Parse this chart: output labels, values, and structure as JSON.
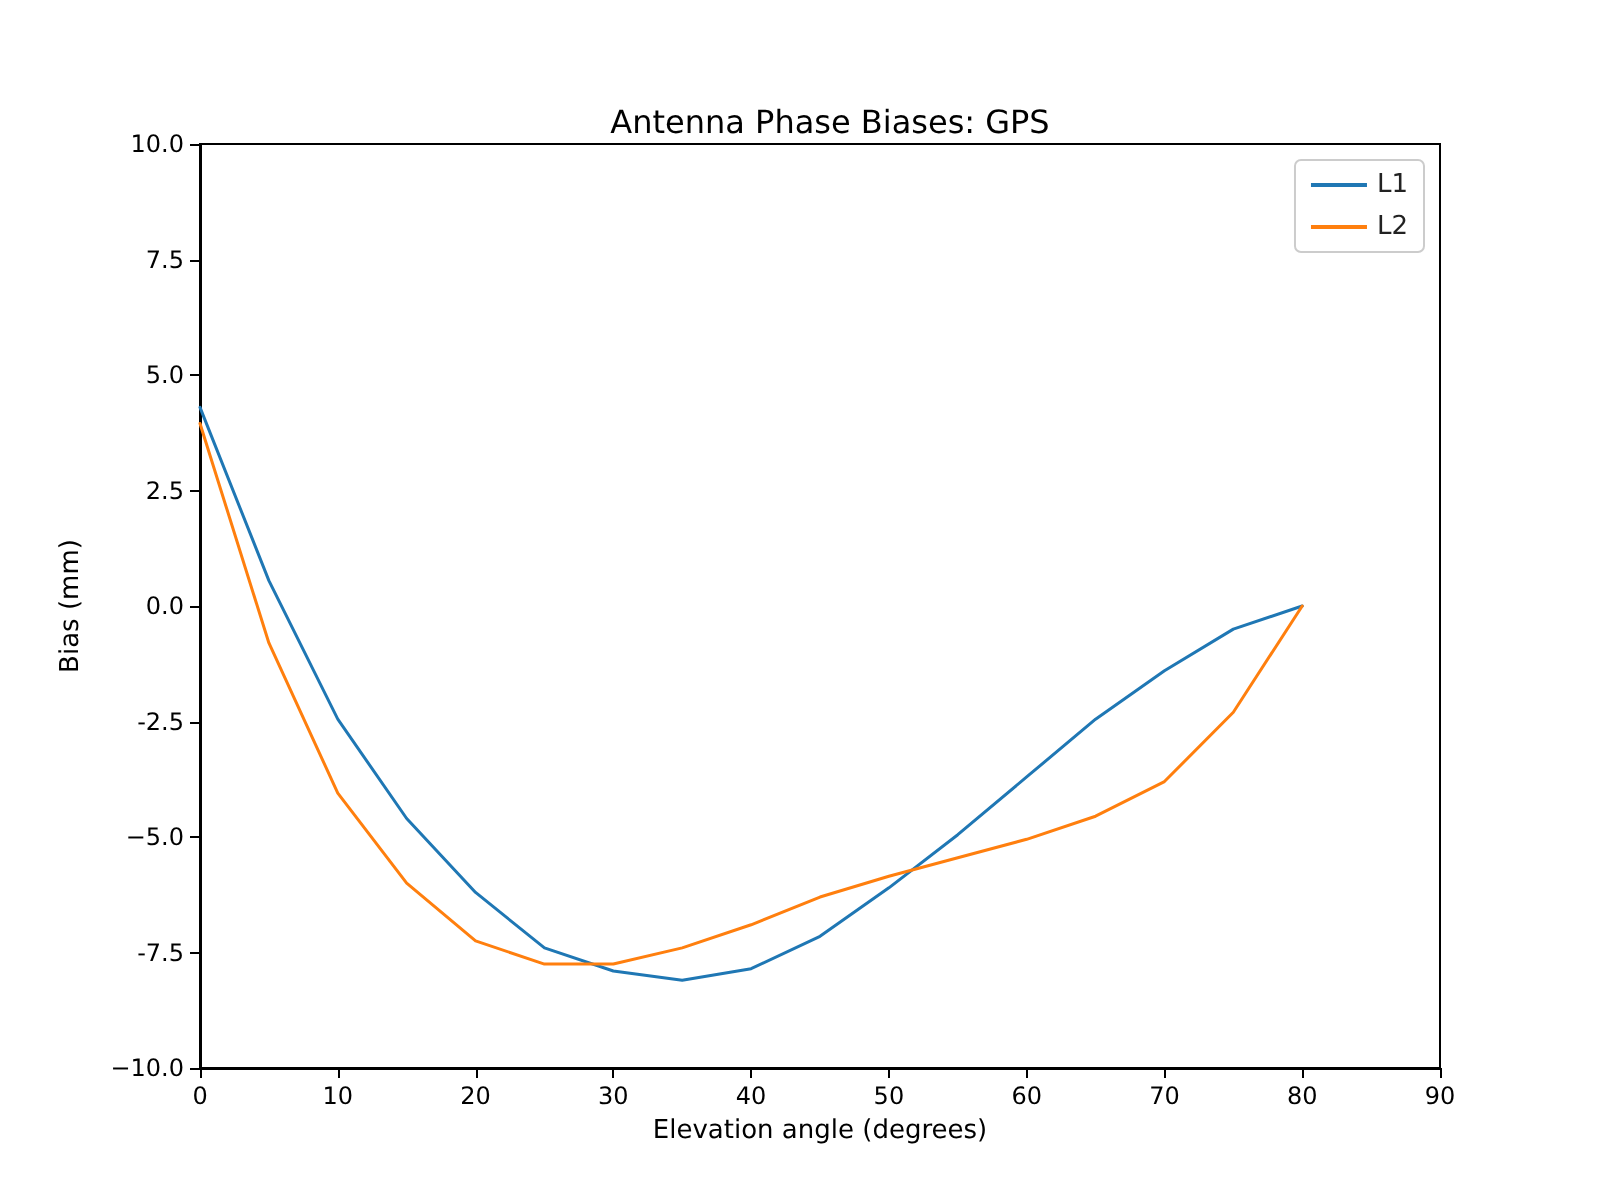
{
  "chart_data": {
    "type": "line",
    "title": "Antenna Phase Biases: GPS",
    "xlabel": "Elevation angle (degrees)",
    "ylabel": "Bias (mm)",
    "x": [
      0,
      5,
      10,
      15,
      20,
      25,
      30,
      35,
      40,
      45,
      50,
      55,
      60,
      65,
      70,
      75,
      80
    ],
    "series": [
      {
        "name": "L1",
        "color": "#1f77b4",
        "values": [
          4.3,
          0.55,
          -2.45,
          -4.6,
          -6.2,
          -7.4,
          -7.9,
          -8.1,
          -7.85,
          -7.15,
          -6.1,
          -4.95,
          -3.7,
          -2.45,
          -1.4,
          -0.5,
          0
        ]
      },
      {
        "name": "L2",
        "color": "#ff7f0e",
        "values": [
          3.95,
          -0.8,
          -4.05,
          -6.0,
          -7.25,
          -7.75,
          -7.75,
          -7.4,
          -6.9,
          -6.3,
          -5.85,
          -5.45,
          -5.05,
          -4.55,
          -3.8,
          -2.3,
          0
        ]
      }
    ],
    "xlim": [
      0,
      90
    ],
    "xticks": [
      0,
      10,
      20,
      30,
      40,
      50,
      60,
      70,
      80,
      90
    ],
    "ylim": [
      -10,
      10
    ],
    "yticks": [
      {
        "value": -10,
        "label": "−10.0"
      },
      -7.5,
      {
        "value": -5,
        "label": "−5.0"
      },
      -2.5,
      {
        "value": 0,
        "label": "0.0"
      },
      2.5,
      {
        "value": 5,
        "label": "5.0"
      },
      7.5,
      {
        "value": 10,
        "label": "10.0"
      }
    ],
    "grid": false,
    "legend": "top right",
    "marker": "none",
    "line_style": "solid"
  }
}
